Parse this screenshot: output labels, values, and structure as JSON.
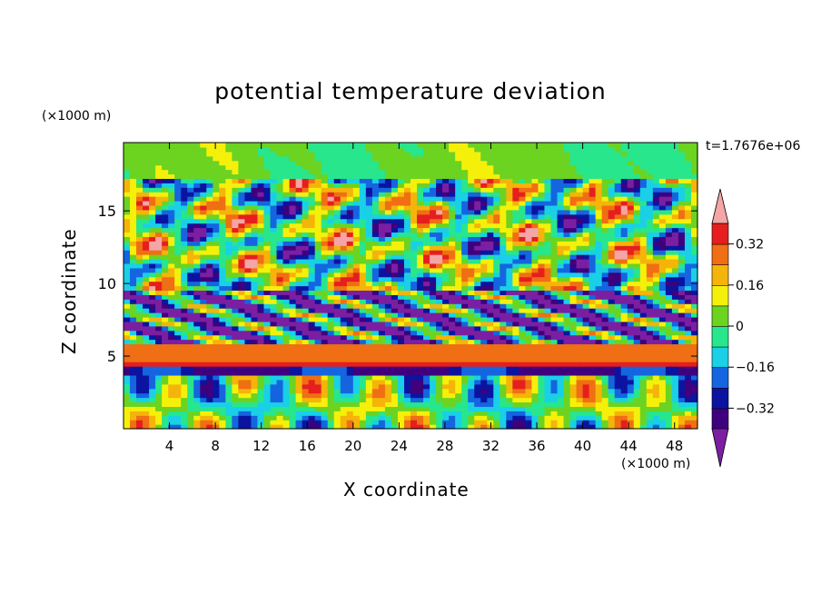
{
  "chart_data": {
    "type": "heatmap",
    "title": "potential temperature deviation",
    "xlabel": "X coordinate",
    "ylabel": "Z coordinate",
    "x_unit": "(×1000 m)",
    "y_unit": "(×1000 m)",
    "time_label": "t=1.7676e+06",
    "x_ticks": [
      4,
      8,
      12,
      16,
      20,
      24,
      28,
      32,
      36,
      40,
      44,
      48
    ],
    "y_ticks": [
      5,
      10,
      15
    ],
    "xlim": [
      0,
      50
    ],
    "ylim": [
      0,
      19.7
    ],
    "colorbar": {
      "levels": [
        -0.4,
        -0.32,
        -0.24,
        -0.16,
        -0.08,
        0,
        0.08,
        0.16,
        0.24,
        0.32,
        0.4
      ],
      "tick_labels": [
        "0.32",
        "0.16",
        "0",
        "−0.16",
        "−0.32"
      ],
      "tick_values": [
        0.32,
        0.16,
        0,
        -0.16,
        -0.32
      ],
      "colors": [
        "#7b1fa2",
        "#3f007d",
        "#0a14a0",
        "#1565e0",
        "#19d0e6",
        "#28e68c",
        "#6cd321",
        "#f5f00a",
        "#f5b40a",
        "#f06e14",
        "#e61e1e",
        "#f4a5a5"
      ],
      "extend": "both"
    }
  }
}
